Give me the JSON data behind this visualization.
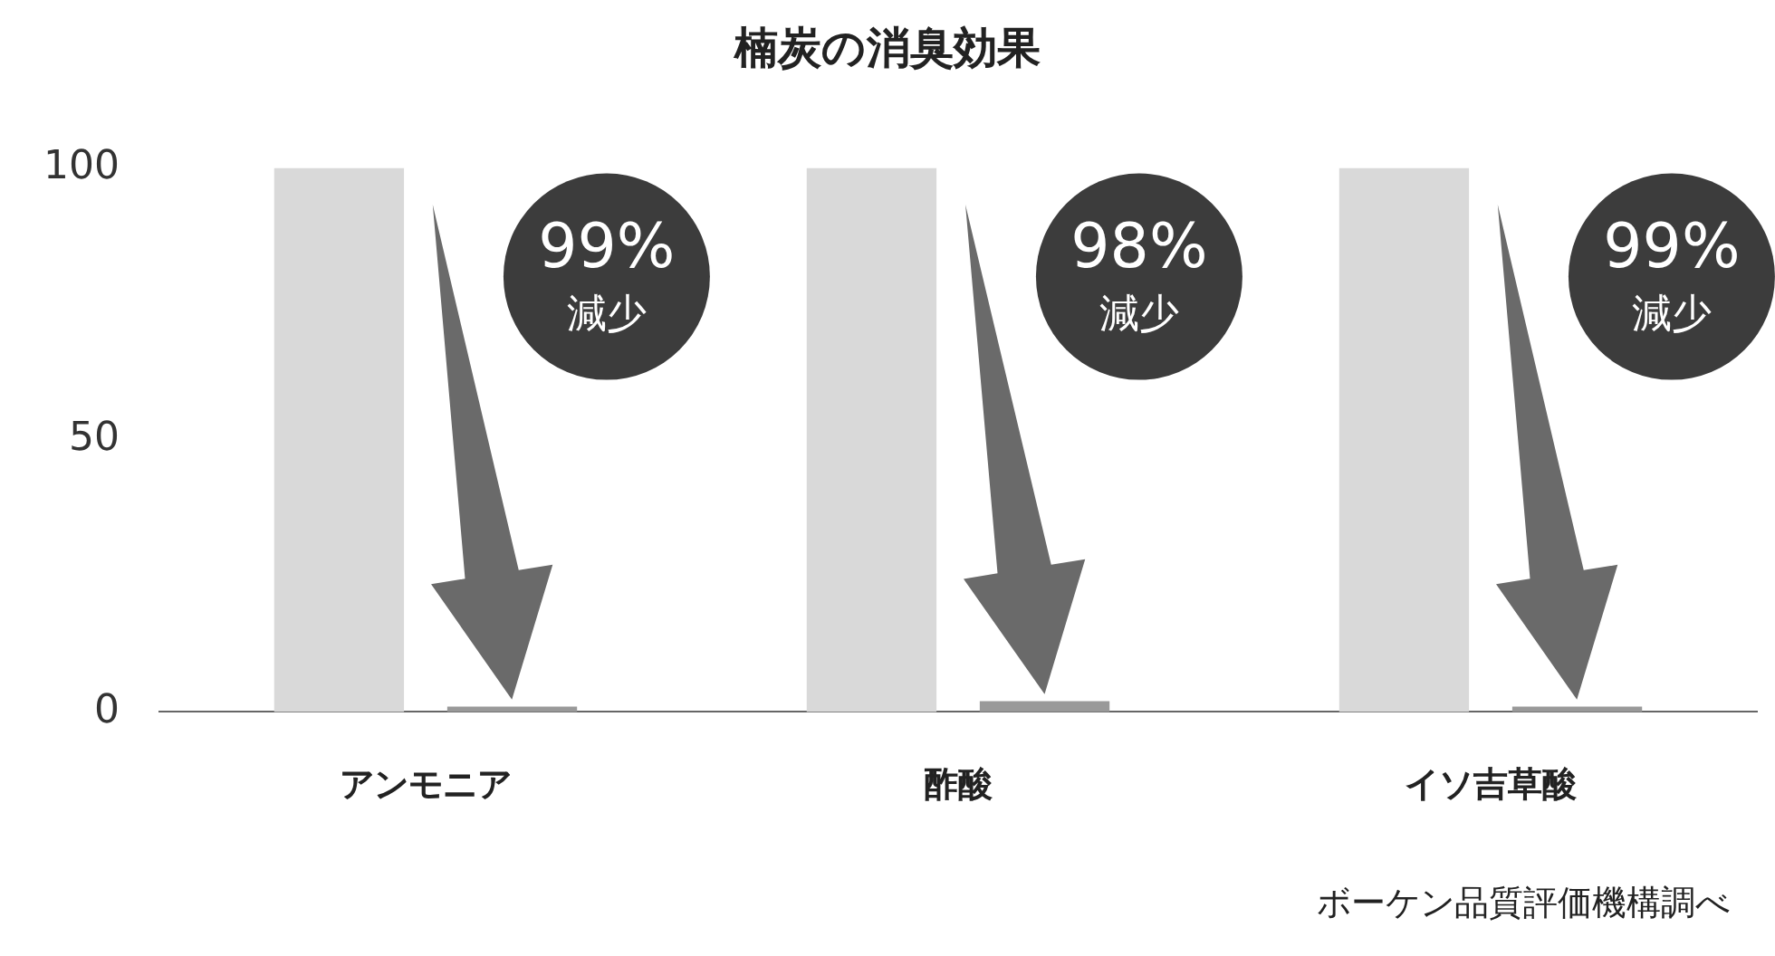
{
  "chart_data": {
    "type": "bar",
    "title": "楠炭の消臭効果",
    "categories": [
      "アンモニア",
      "酢酸",
      "イソ吉草酸"
    ],
    "series": [
      {
        "color": "#d9d9d9",
        "values": [
          100,
          100,
          100
        ]
      },
      {
        "color": "#999999",
        "values": [
          1,
          2,
          1
        ]
      }
    ],
    "ylim": [
      0,
      100
    ],
    "yticks": [
      0,
      50,
      100
    ],
    "grid": false,
    "legend": false,
    "annotations": [
      "99%減少",
      "98%減少",
      "99%減少",
      "ボーケン品質評価機構調べ"
    ]
  }
}
